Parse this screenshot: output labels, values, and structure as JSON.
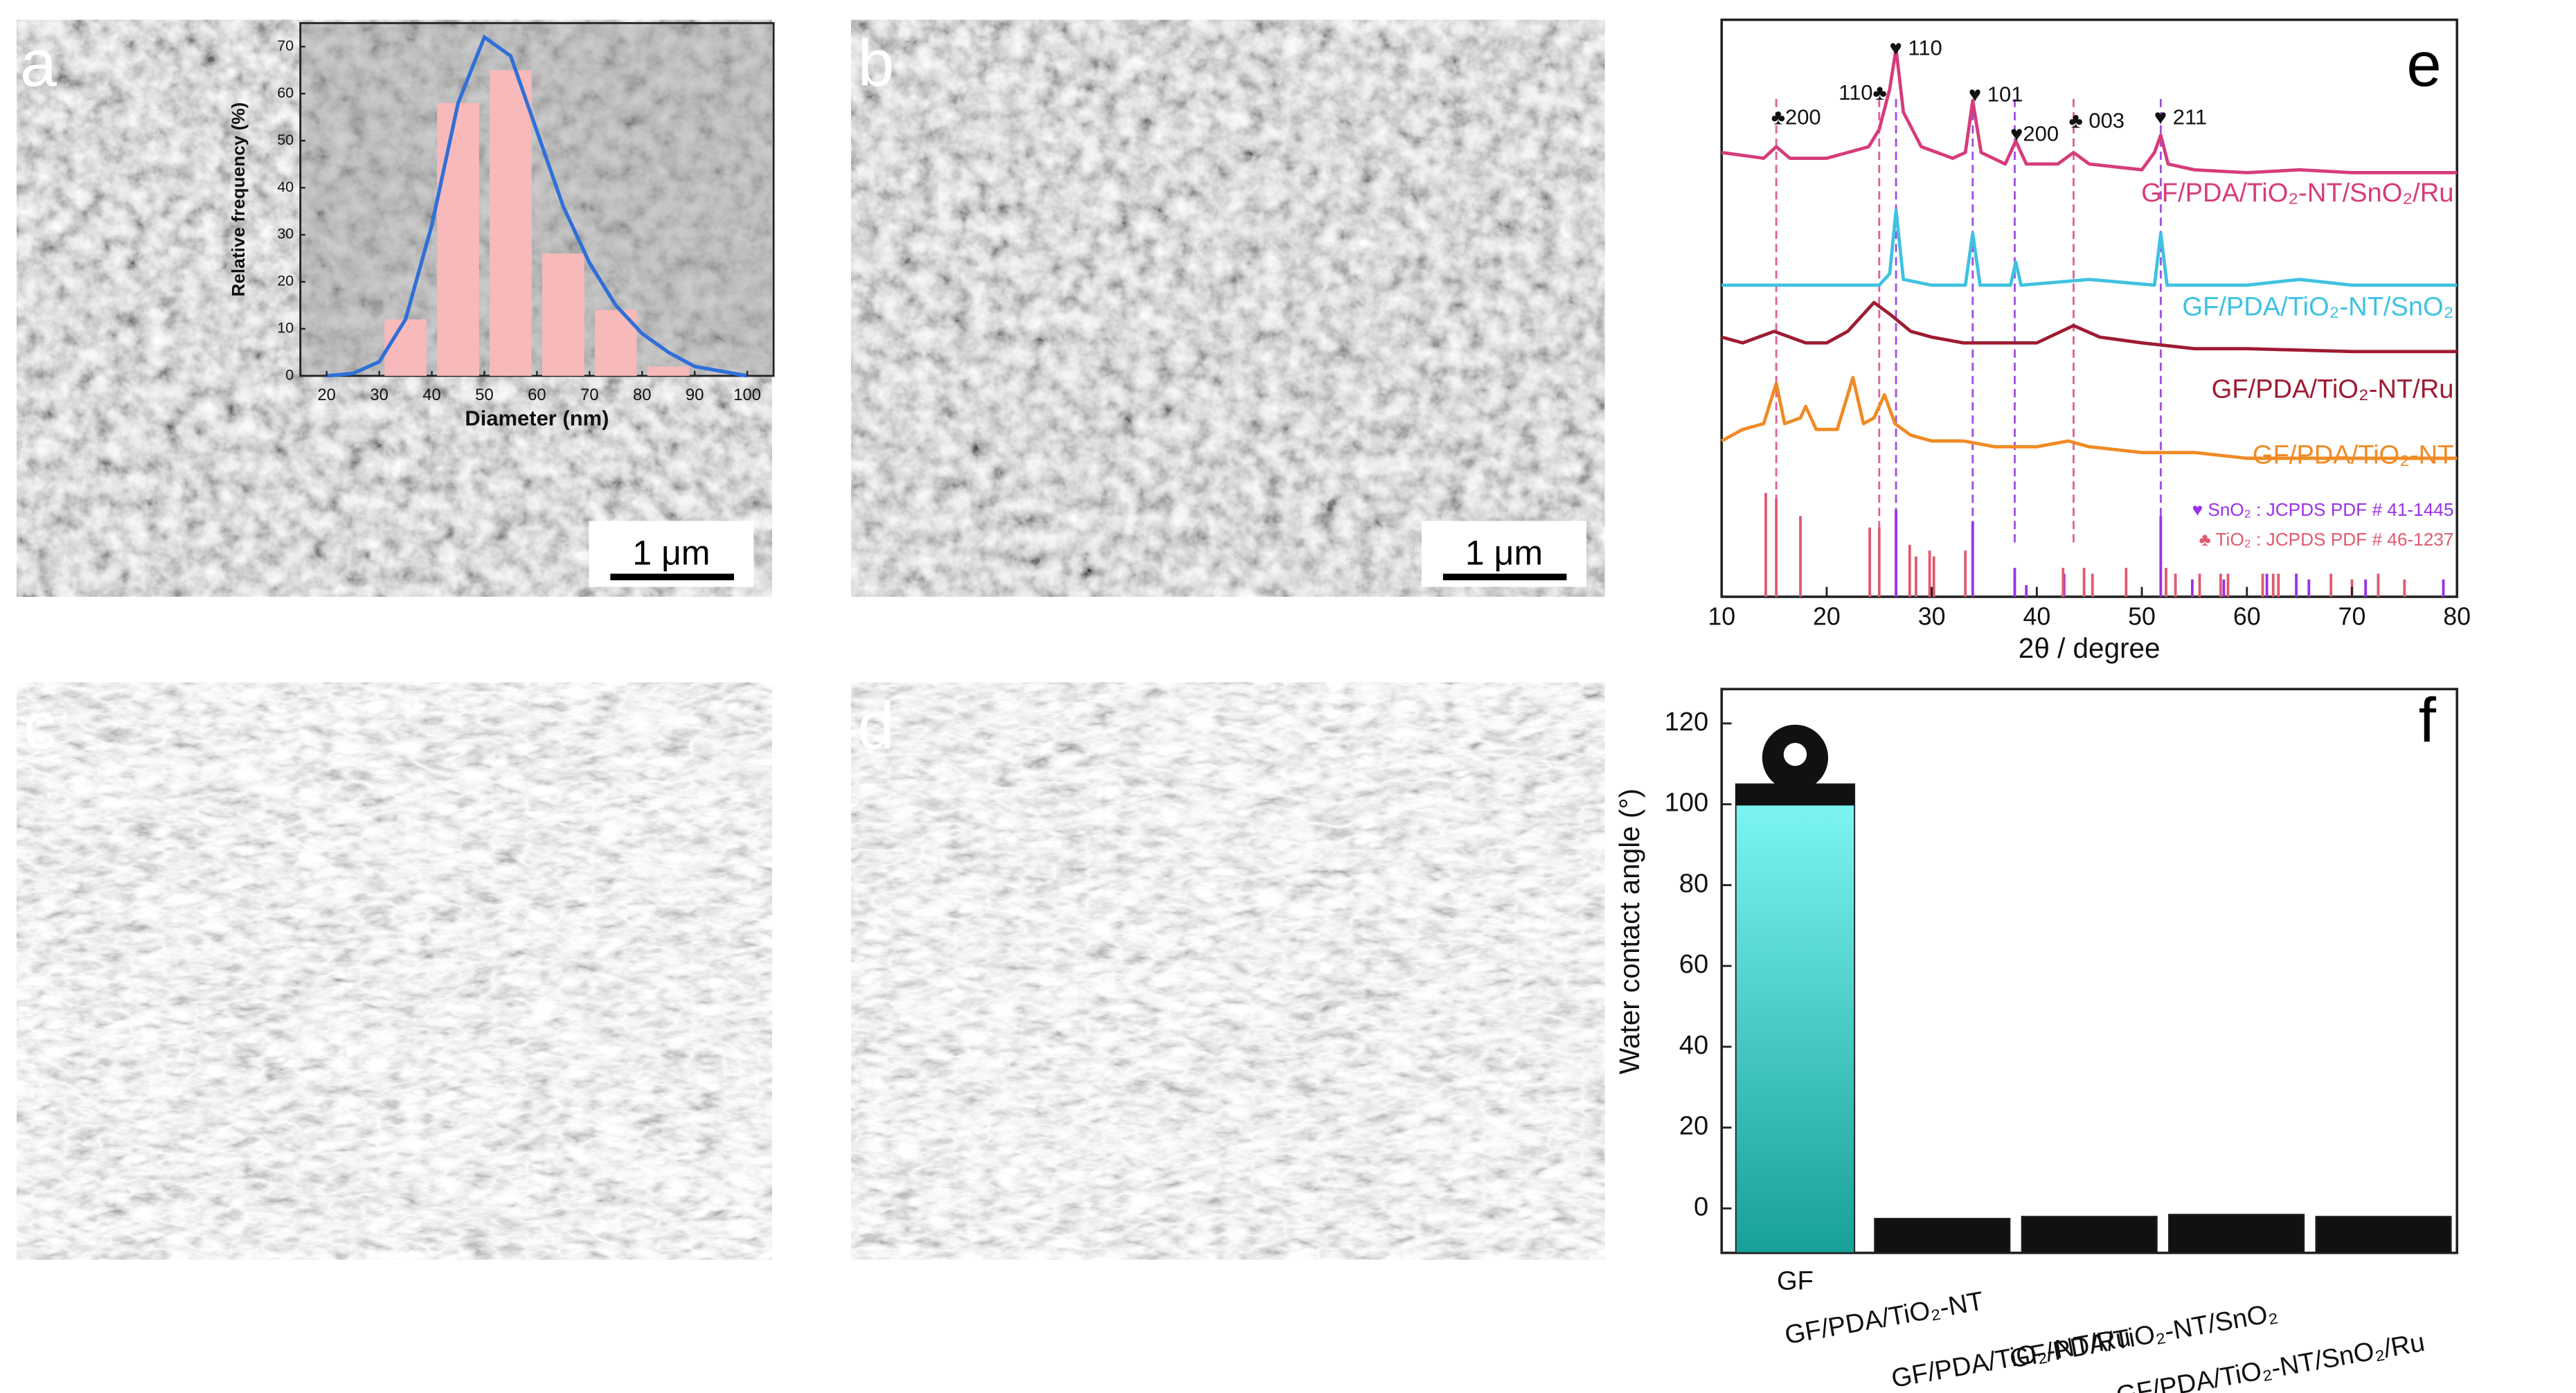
{
  "panel_labels": [
    "a",
    "b",
    "c",
    "d"
  ],
  "scale_bars": [
    "1 μm",
    "1 μm"
  ],
  "chart_data": [
    {
      "type": "histogram",
      "xlabel": "Diameter (nm)",
      "ylabel": "Relative frequency (%)",
      "bins": [
        30,
        40,
        50,
        60,
        70,
        80,
        90
      ],
      "values": [
        12,
        58,
        65,
        26,
        14,
        2
      ],
      "color": "#f7b9b9",
      "fit": {
        "x": [
          20,
          25,
          30,
          35,
          40,
          45,
          50,
          55,
          60,
          65,
          70,
          75,
          80,
          85,
          90,
          95,
          100
        ],
        "values": [
          0,
          0.5,
          3,
          12,
          32,
          58,
          72,
          68,
          52,
          36,
          24,
          15,
          9,
          5,
          2,
          1,
          0
        ],
        "color": "#2f6fd8"
      },
      "xlim": [
        15,
        105
      ],
      "xticks": [
        20,
        30,
        40,
        50,
        60,
        70,
        80,
        90,
        100
      ],
      "ylim": [
        0,
        75
      ],
      "yticks": [
        0,
        10,
        20,
        30,
        40,
        50,
        60,
        70
      ]
    },
    {
      "type": "line",
      "label": "e",
      "xlabel": "2θ / degree",
      "xlim": [
        10,
        80
      ],
      "xticks": [
        10,
        20,
        30,
        40,
        50,
        60,
        70,
        80
      ],
      "ylim": [
        0,
        100
      ],
      "series": [
        {
          "name": "GF/PDA/TiO₂-NT/SnO₂/Ru",
          "color": "#d63c7a",
          "x": [
            10,
            14,
            15.2,
            16.5,
            20,
            24,
            25,
            26,
            26.6,
            27.3,
            29,
            32,
            33.2,
            33.9,
            34.7,
            37,
            38,
            39,
            42,
            43.5,
            45,
            50,
            51.2,
            51.8,
            52.5,
            55,
            60,
            65,
            70,
            75,
            80
          ],
          "values": [
            77,
            76,
            78,
            76,
            76,
            78,
            81,
            88,
            95,
            84,
            78,
            76,
            77,
            86,
            77,
            75,
            79,
            75,
            75,
            77,
            75,
            74,
            77,
            80,
            75,
            74,
            73.5,
            74,
            73.5,
            73.5,
            73.5
          ]
        },
        {
          "name": "GF/PDA/TiO₂-NT/SnO₂",
          "color": "#3fc2e0",
          "x": [
            10,
            20,
            25,
            26,
            26.6,
            27.3,
            30,
            33.2,
            33.9,
            34.6,
            37.5,
            38,
            38.5,
            45,
            51.2,
            51.8,
            52.4,
            60,
            65,
            70,
            80
          ],
          "values": [
            54,
            54,
            54,
            56,
            67,
            55,
            54,
            54,
            63,
            54,
            54,
            58,
            54,
            55,
            54,
            63,
            54,
            54,
            55,
            54,
            54
          ]
        },
        {
          "name": "GF/PDA/TiO₂-NT/Ru",
          "color": "#9e1b32",
          "x": [
            10,
            12,
            15,
            18,
            20,
            22,
            24.5,
            26,
            28,
            30,
            33,
            36,
            40,
            43.5,
            46,
            50,
            55,
            60,
            70,
            80
          ],
          "values": [
            45,
            44,
            46,
            44,
            44,
            46,
            51,
            49,
            46,
            45,
            44,
            44,
            44,
            47,
            45,
            44,
            43,
            43,
            42.5,
            42.5
          ]
        },
        {
          "name": "GF/PDA/TiO₂-NT",
          "color": "#f08a24",
          "x": [
            10,
            12,
            14,
            15.2,
            16,
            17.5,
            18,
            19,
            21,
            22.5,
            23.5,
            24.5,
            25.5,
            26.5,
            28,
            30,
            33,
            36,
            40,
            43,
            45,
            50,
            55,
            60,
            70,
            80
          ],
          "values": [
            27,
            29,
            30,
            37,
            30,
            31,
            33,
            29,
            29,
            38,
            30,
            31,
            35,
            30,
            28,
            27,
            27,
            26,
            26,
            27,
            26,
            25,
            25,
            24,
            24,
            24
          ]
        }
      ],
      "peak_lines": {
        "x": [
          15.2,
          25,
          26.6,
          33.9,
          37.9,
          43.5,
          51.8
        ],
        "colors": [
          "#e0609a",
          "#e0609a",
          "#a050e0",
          "#a050e0",
          "#a050e0",
          "#e0609a",
          "#a050e0"
        ]
      },
      "peak_labels": [
        {
          "label": "♣200",
          "x": 15.2
        },
        {
          "label": "110♣",
          "x": 25
        },
        {
          "label": "♥ 110",
          "x": 26.6
        },
        {
          "label": "♥ 101",
          "x": 33.9
        },
        {
          "label": "♥200",
          "x": 37.9
        },
        {
          "label": "♣ 003",
          "x": 43.5
        },
        {
          "label": "♥ 211",
          "x": 51.8
        }
      ],
      "references": [
        {
          "name": "♥ SnO₂ : JCPDS PDF # 41-1445",
          "color": "#9b30e8",
          "x": [
            26.6,
            33.9,
            37.9,
            39,
            42.6,
            51.8,
            54.8,
            57.8,
            61.9,
            64.7,
            65.9,
            71.3,
            78.7
          ],
          "values": [
            15,
            13,
            5,
            2,
            4,
            14,
            3,
            3,
            4,
            4,
            3,
            3,
            3
          ]
        },
        {
          "name": "♣ TiO₂ : JCPDS PDF # 46-1237",
          "color": "#e05a6e",
          "x": [
            14.2,
            15.2,
            17.5,
            24.1,
            25,
            27.9,
            28.5,
            29.8,
            30.2,
            33.2,
            42.5,
            44.5,
            45.3,
            48.5,
            52.3,
            53.2,
            55.5,
            57.5,
            58.2,
            61.5,
            62.5,
            63,
            68,
            70,
            72.5,
            75
          ],
          "values": [
            18,
            17,
            14,
            12,
            12,
            9,
            7,
            8,
            7,
            8,
            5,
            5,
            4,
            5,
            5,
            4,
            4,
            4,
            4,
            4,
            4,
            4,
            4,
            3,
            4,
            3
          ]
        }
      ]
    },
    {
      "type": "bar",
      "label": "f",
      "ylabel": "Water contact angle (°)",
      "categories": [
        "GF",
        "GF/PDA/TiO₂-NT",
        "GF/PDA/TiO₂-NT/Ru",
        "GF/PDA/TiO₂-NT/SnO₂",
        "GF/PDA/TiO₂-NT/SnO₂/Ru"
      ],
      "values": [
        105,
        -2.5,
        -2,
        -1.5,
        -2
      ],
      "colors": [
        "#40d0d0",
        "#111111",
        "#111111",
        "#111111",
        "#111111"
      ],
      "ylim": [
        -11,
        128.5
      ],
      "yticks": [
        0,
        20,
        40,
        60,
        80,
        100,
        120
      ]
    }
  ]
}
